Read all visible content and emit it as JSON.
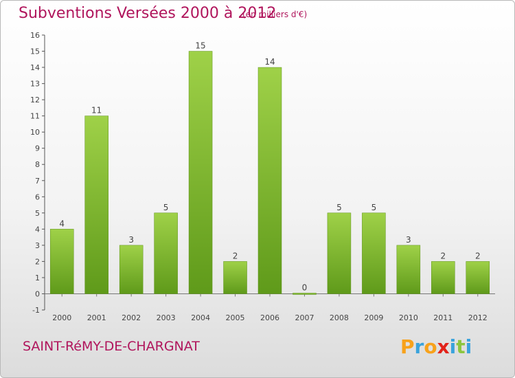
{
  "header": {
    "title": "Subventions Versées 2000 à 2012",
    "subtitle": "(en milliers d'€)"
  },
  "footer": {
    "commune": "SAINT-RéMY-DE-CHARGNAT",
    "logo_letters": [
      "P",
      "r",
      "o",
      "x",
      "i",
      "t",
      "i"
    ],
    "logo_colors": [
      "#f7a21b",
      "#3aa3dc",
      "#f7a21b",
      "#e2231a",
      "#3aa3dc",
      "#8cc63f",
      "#3aa3dc"
    ]
  },
  "chart_data": {
    "type": "bar",
    "categories": [
      "2000",
      "2001",
      "2002",
      "2003",
      "2004",
      "2005",
      "2006",
      "2007",
      "2008",
      "2009",
      "2010",
      "2011",
      "2012"
    ],
    "values": [
      4,
      11,
      3,
      5,
      15,
      2,
      14,
      0,
      5,
      5,
      3,
      2,
      2
    ],
    "data_labels": [
      "4",
      "11",
      "3",
      "5",
      "15",
      "2",
      "14",
      "0",
      "5",
      "5",
      "3",
      "2",
      "2"
    ],
    "y_ticks": [
      -1,
      0,
      1,
      2,
      3,
      4,
      5,
      6,
      7,
      8,
      9,
      10,
      11,
      12,
      13,
      14,
      15,
      16
    ],
    "ylim": [
      -1,
      16
    ],
    "grid": false,
    "bar_color": "#7ab32e",
    "bar_color_light": "#9fd148",
    "xlabel": "",
    "ylabel": ""
  }
}
